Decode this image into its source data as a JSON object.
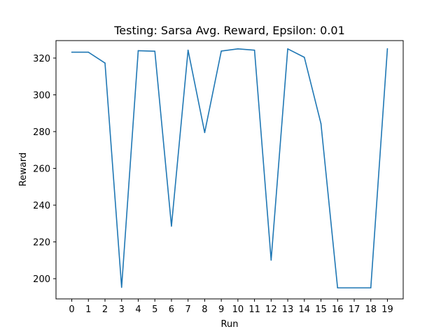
{
  "chart_data": {
    "type": "line",
    "title": "Testing: Sarsa Avg. Reward, Epsilon: 0.01",
    "xlabel": "Run",
    "ylabel": "Reward",
    "x": [
      0,
      1,
      2,
      3,
      4,
      5,
      6,
      7,
      8,
      9,
      10,
      11,
      12,
      13,
      14,
      15,
      16,
      17,
      18,
      19
    ],
    "xticks": [
      "0",
      "1",
      "2",
      "3",
      "4",
      "5",
      "6",
      "7",
      "8",
      "9",
      "10",
      "11",
      "12",
      "13",
      "14",
      "15",
      "16",
      "17",
      "18",
      "19"
    ],
    "xlim": [
      -0.95,
      19.95
    ],
    "ylim": [
      189,
      329.5
    ],
    "yticks": [
      200,
      220,
      240,
      260,
      280,
      300,
      320
    ],
    "series": [
      {
        "color": "#1f77b4",
        "values": [
          323.2,
          323.2,
          317.3,
          195.3,
          324.0,
          323.7,
          228.6,
          324.3,
          279.5,
          323.8,
          325.0,
          324.3,
          210.1,
          325.0,
          320.4,
          284.3,
          195.0,
          195.0,
          195.0,
          325.1
        ]
      }
    ],
    "grid": false,
    "legend": "none"
  }
}
